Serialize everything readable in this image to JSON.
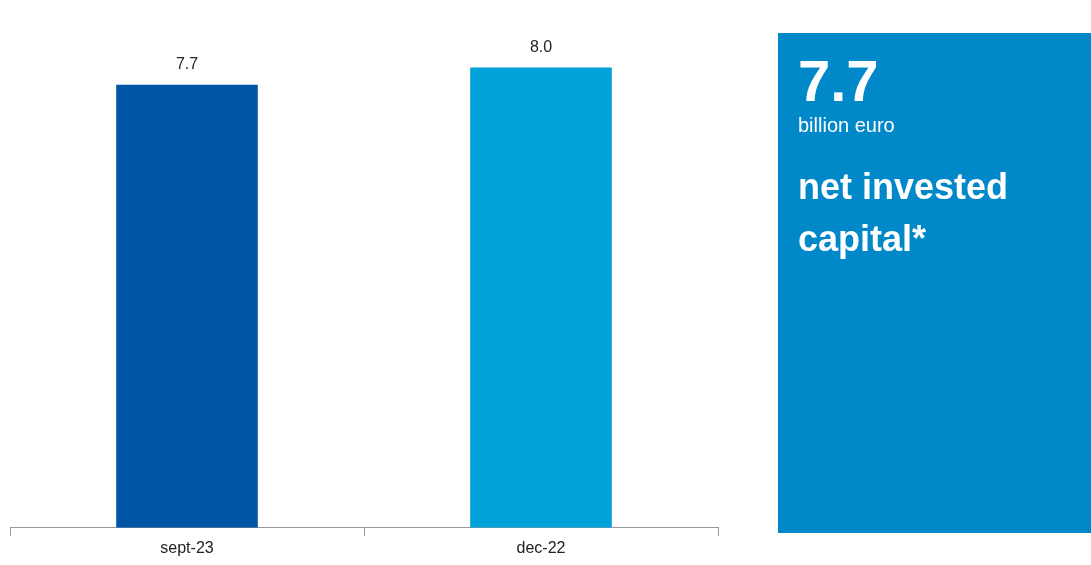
{
  "chart_data": [
    {
      "type": "bar",
      "categories": [
        "sept-23",
        "dec-22"
      ],
      "values": [
        7.7,
        8.0
      ],
      "colors": [
        "#0055a4",
        "#00a0d8"
      ],
      "value_labels": [
        "7.7",
        "8.0"
      ],
      "legend": false
    },
    {
      "type": "other",
      "annotations": [
        "7.7",
        "billion euro",
        "net invested capital*"
      ]
    }
  ]
}
